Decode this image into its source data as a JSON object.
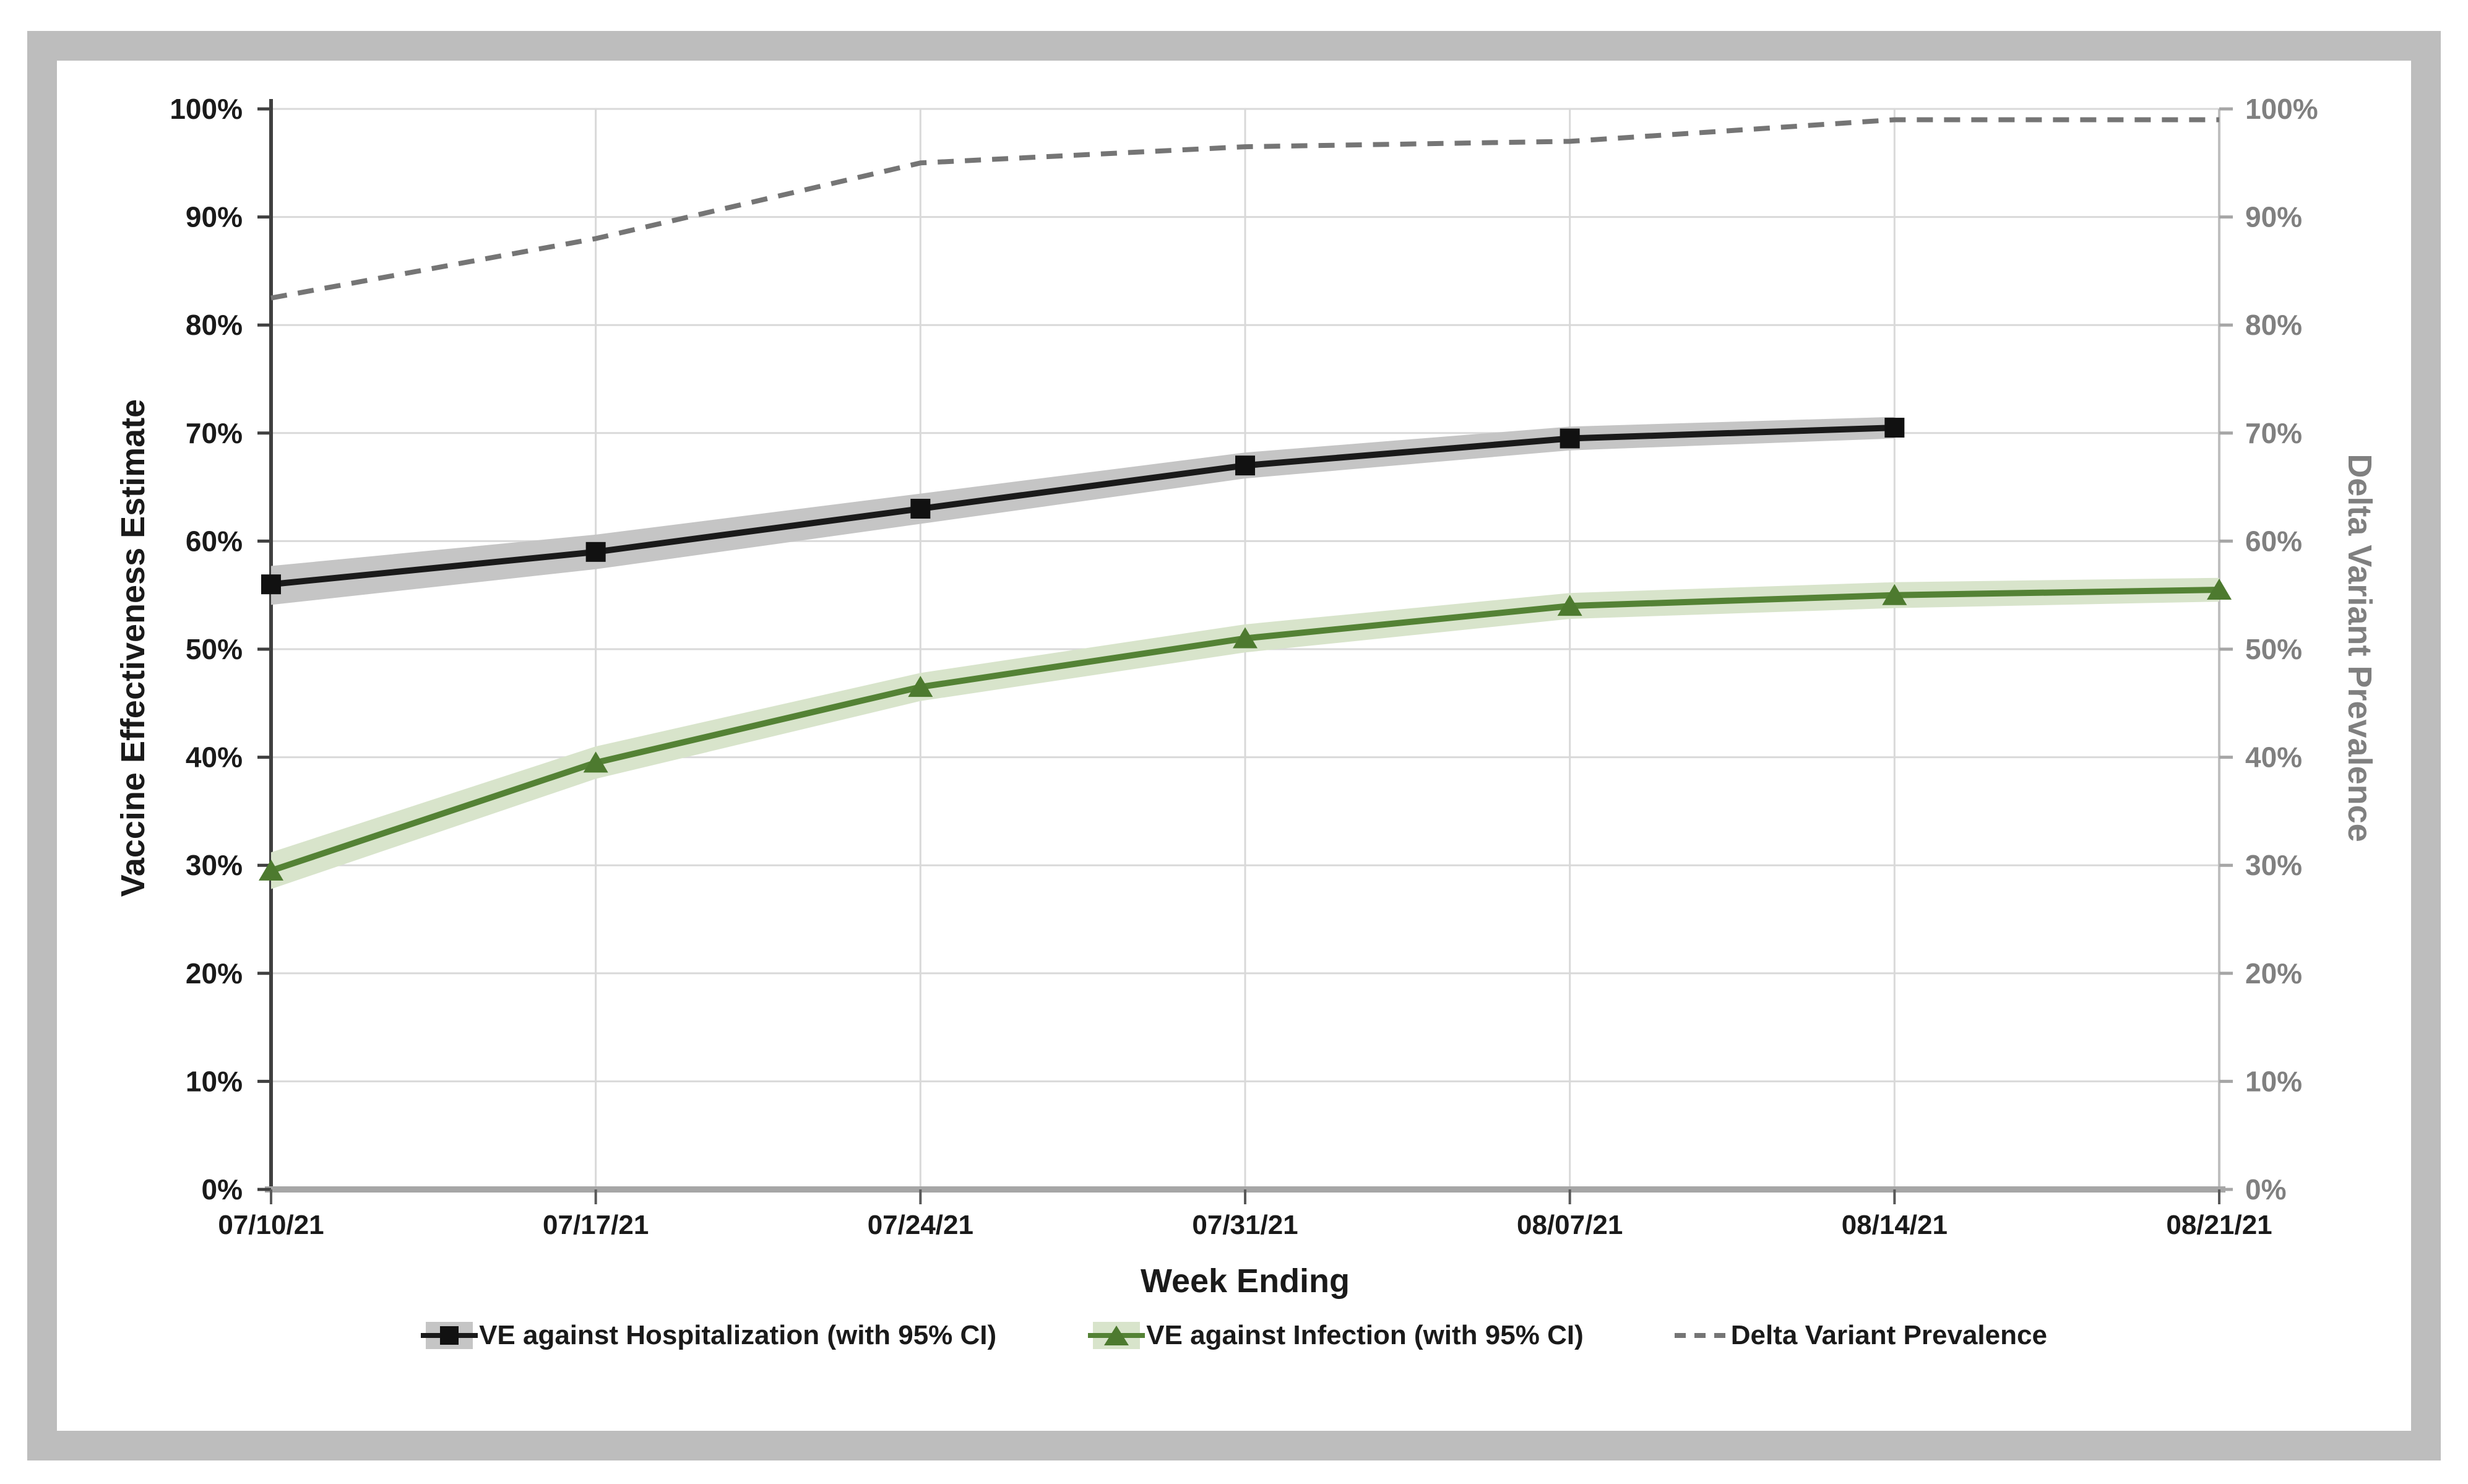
{
  "frame": {
    "border_color": "#bdbdbd",
    "background": "#ffffff"
  },
  "chart_data": {
    "type": "line",
    "categories": [
      "07/10/21",
      "07/17/21",
      "07/24/21",
      "07/31/21",
      "08/07/21",
      "08/14/21",
      "08/21/21"
    ],
    "series": [
      {
        "name": "VE against Hospitalization (with 95% CI)",
        "slug": "hospitalization",
        "color": "#1a1a1a",
        "marker_color": "#111111",
        "band_color": "#c5c5c5",
        "marker": "square",
        "dash": false,
        "values": [
          56,
          59,
          63,
          67,
          69.5,
          70.5
        ],
        "ci_upper": [
          57.7,
          60.6,
          64.4,
          68.2,
          70.6,
          71.5
        ],
        "ci_lower": [
          54.1,
          57.4,
          61.6,
          65.8,
          68.4,
          69.5
        ]
      },
      {
        "name": "VE against Infection (with 95% CI)",
        "slug": "infection",
        "color": "#548235",
        "marker_color": "#4d7a2f",
        "band_color": "#d8e4cb",
        "marker": "triangle",
        "dash": false,
        "values": [
          29.5,
          39.5,
          46.5,
          51,
          54,
          55,
          55.5
        ],
        "ci_upper": [
          31.2,
          41,
          47.8,
          52.3,
          55.2,
          56.2,
          56.6
        ],
        "ci_lower": [
          27.8,
          38,
          45.2,
          49.7,
          52.8,
          53.8,
          54.4
        ]
      },
      {
        "name": "Delta Variant Prevalence",
        "slug": "delta",
        "color": "#757575",
        "marker": "none",
        "dash": true,
        "values": [
          82.5,
          88,
          95,
          96.5,
          97,
          99,
          99
        ]
      }
    ],
    "left_axis": {
      "label": "Vaccine Effectiveness Estimate",
      "color": "#1a1a1a",
      "tick_labels": [
        "0%",
        "10%",
        "20%",
        "30%",
        "40%",
        "50%",
        "60%",
        "70%",
        "80%",
        "90%",
        "100%"
      ]
    },
    "right_axis": {
      "label": "Delta Variant Prevalence",
      "color": "#808080",
      "tick_labels": [
        "0%",
        "10%",
        "20%",
        "30%",
        "40%",
        "50%",
        "60%",
        "70%",
        "80%",
        "90%",
        "100%"
      ]
    },
    "x_axis": {
      "label": "Week Ending"
    },
    "ylim": [
      0,
      100
    ],
    "y_tick_step": 10,
    "grid": true,
    "legend_position": "bottom",
    "grid_color": "#d9d9d9",
    "axis_line_color_left": "#404040",
    "axis_line_color_bottom": "#a6a6a6",
    "axis_line_color_right": "#bfbfbf"
  }
}
